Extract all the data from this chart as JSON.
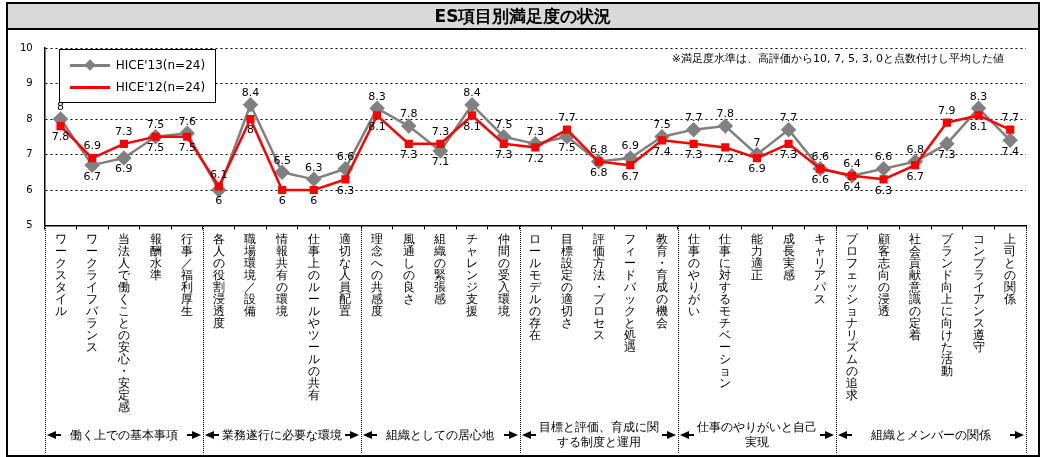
{
  "chart_data": {
    "type": "line",
    "title": "ES項目別満足度の状況",
    "categories": [
      "ワークスタイル",
      "ワークライフバランス",
      "当法人で働くことの安心・安定感",
      "報酬水準",
      "行事／福利厚生",
      "各人の役割浸透度",
      "職場環境／設備",
      "情報共有の環境",
      "仕事上のルールやツールの共有",
      "適切な人員配置",
      "理念への共感度",
      "風通しの良さ",
      "組織の緊張感",
      "チャレンジ支援",
      "仲間の受入環境",
      "ロールモデルの存在",
      "目標設定の適切さ",
      "評価方法・プロセス",
      "フィードバックと処遇",
      "教育・育成の機会",
      "仕事のやりがい",
      "仕事に対するモチベーション",
      "能力適正",
      "成長実感",
      "キャリアパス",
      "プロフェッショナリズムの追求",
      "顧客志向の浸透",
      "社会貢献意識の定着",
      "ブランド向上に向けた活動",
      "コンプライアンス遵守",
      "上司との関係"
    ],
    "series": [
      {
        "name": "HICE'13(n=24)",
        "color": "#808080",
        "marker": "diamond",
        "values": [
          8,
          6.7,
          6.9,
          7.5,
          7.6,
          6,
          8.4,
          6.5,
          6.3,
          6.6,
          8.3,
          7.8,
          7.1,
          8.4,
          7.5,
          7.3,
          7.5,
          6.8,
          6.9,
          7.5,
          7.7,
          7.8,
          7,
          7.7,
          6.6,
          6.4,
          6.6,
          6.8,
          7.3,
          8.3,
          7.4
        ]
      },
      {
        "name": "HICE'12(n=24)",
        "color": "#ff0000",
        "marker": "square",
        "values": [
          7.8,
          6.9,
          7.3,
          7.5,
          7.5,
          6.1,
          8,
          6,
          6,
          6.3,
          8.1,
          7.3,
          7.3,
          8.1,
          7.3,
          7.2,
          7.7,
          6.8,
          6.7,
          7.4,
          7.3,
          7.2,
          6.9,
          7.3,
          6.6,
          6.4,
          6.3,
          6.7,
          7.9,
          8.1,
          7.7
        ]
      }
    ],
    "ylim": [
      5,
      10
    ],
    "yticks": [
      5,
      6,
      7,
      8,
      9,
      10
    ],
    "grid": "y",
    "legend": "top left",
    "data_labels": true,
    "annotations": [
      "※満足度水準は、高評価から10, 7, 5, 3, 0と点数付けし平均した値",
      "働く上での基本事項",
      "業務遂行に必要な環境",
      "組織としての居心地",
      "目標と評価、育成に関する制度と運用",
      "仕事のやりがいと自己実現",
      "組織とメンバーの関係"
    ]
  }
}
